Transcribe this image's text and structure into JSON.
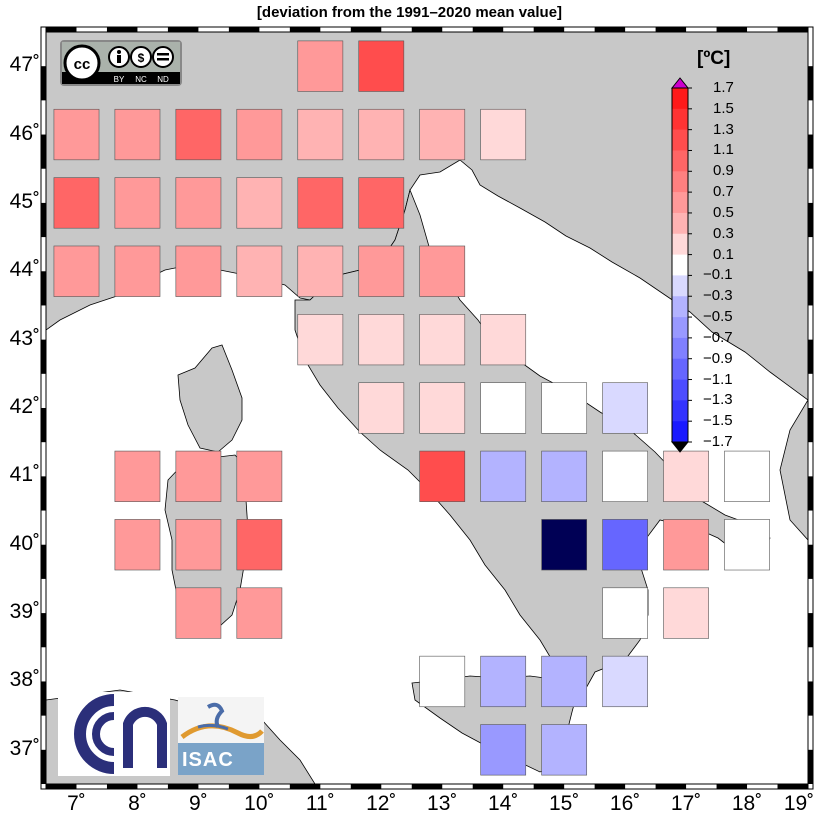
{
  "title": "[deviation from the 1991–2020 mean value]",
  "legend": {
    "unit": "[ºC]",
    "ticks": [
      "1.7",
      "1.5",
      "1.3",
      "1.1",
      "0.9",
      "0.7",
      "0.5",
      "0.3",
      "0.1",
      "−0.1",
      "−0.3",
      "−0.5",
      "−0.7",
      "−0.9",
      "−1.1",
      "−1.3",
      "−1.5",
      "−1.7"
    ],
    "colors_top_to_bottom": [
      "#ff1a1a",
      "#ff3333",
      "#ff4d4d",
      "#ff6666",
      "#ff8080",
      "#ff9999",
      "#ffb3b3",
      "#ffd9d9",
      "#ffffff",
      "#d9d9ff",
      "#b3b3ff",
      "#9999ff",
      "#8080ff",
      "#6666ff",
      "#4d4dff",
      "#3333ff",
      "#1a1aff"
    ],
    "overflow_high_color": "#cc00cc",
    "overflow_low_color": "#000000"
  },
  "axes": {
    "lon_labels": [
      "7˚",
      "8˚",
      "9˚",
      "10˚",
      "11˚",
      "12˚",
      "13˚",
      "14˚",
      "15˚",
      "16˚",
      "17˚",
      "18˚",
      "19˚"
    ],
    "lat_labels": [
      "47˚",
      "46˚",
      "45˚",
      "44˚",
      "43˚",
      "42˚",
      "41˚",
      "40˚",
      "39˚",
      "38˚",
      "37˚"
    ],
    "lon_range": [
      6.5,
      19
    ],
    "lat_range": [
      36.5,
      47.5
    ]
  },
  "grid_cells": [
    {
      "lon": 11,
      "lat": 47,
      "value": 0.5
    },
    {
      "lon": 12,
      "lat": 47,
      "value": 1.1
    },
    {
      "lon": 7,
      "lat": 46,
      "value": 0.5
    },
    {
      "lon": 8,
      "lat": 46,
      "value": 0.7
    },
    {
      "lon": 9,
      "lat": 46,
      "value": 0.9
    },
    {
      "lon": 10,
      "lat": 46,
      "value": 0.5
    },
    {
      "lon": 11,
      "lat": 46,
      "value": 0.3
    },
    {
      "lon": 12,
      "lat": 46,
      "value": 0.3
    },
    {
      "lon": 13,
      "lat": 46,
      "value": 0.3
    },
    {
      "lon": 14,
      "lat": 46,
      "value": 0.2
    },
    {
      "lon": 7,
      "lat": 45,
      "value": 0.9
    },
    {
      "lon": 8,
      "lat": 45,
      "value": 0.6
    },
    {
      "lon": 9,
      "lat": 45,
      "value": 0.5
    },
    {
      "lon": 10,
      "lat": 45,
      "value": 0.3
    },
    {
      "lon": 11,
      "lat": 45,
      "value": 0.9
    },
    {
      "lon": 12,
      "lat": 45,
      "value": 0.9
    },
    {
      "lon": 7,
      "lat": 44,
      "value": 0.7
    },
    {
      "lon": 8,
      "lat": 44,
      "value": 0.7
    },
    {
      "lon": 9,
      "lat": 44,
      "value": 0.5
    },
    {
      "lon": 10,
      "lat": 44,
      "value": 0.4
    },
    {
      "lon": 11,
      "lat": 44,
      "value": 0.4
    },
    {
      "lon": 12,
      "lat": 44,
      "value": 0.5
    },
    {
      "lon": 13,
      "lat": 44,
      "value": 0.5
    },
    {
      "lon": 11,
      "lat": 43,
      "value": 0.2
    },
    {
      "lon": 12,
      "lat": 43,
      "value": 0.2
    },
    {
      "lon": 13,
      "lat": 43,
      "value": 0.2
    },
    {
      "lon": 14,
      "lat": 43,
      "value": 0.2
    },
    {
      "lon": 12,
      "lat": 42,
      "value": 0.2
    },
    {
      "lon": 13,
      "lat": 42,
      "value": 0.2
    },
    {
      "lon": 14,
      "lat": 42,
      "value": 0.0
    },
    {
      "lon": 15,
      "lat": 42,
      "value": 0.0
    },
    {
      "lon": 16,
      "lat": 42,
      "value": -0.2
    },
    {
      "lon": 13,
      "lat": 41,
      "value": 1.1
    },
    {
      "lon": 14,
      "lat": 41,
      "value": -0.3
    },
    {
      "lon": 15,
      "lat": 41,
      "value": -0.3
    },
    {
      "lon": 16,
      "lat": 41,
      "value": 0.0
    },
    {
      "lon": 17,
      "lat": 41,
      "value": 0.2
    },
    {
      "lon": 18,
      "lat": 41,
      "value": 0.0
    },
    {
      "lon": 8,
      "lat": 41,
      "value": 0.7
    },
    {
      "lon": 9,
      "lat": 41,
      "value": 0.7
    },
    {
      "lon": 10,
      "lat": 41,
      "value": 0.7
    },
    {
      "lon": 8,
      "lat": 40,
      "value": 0.7
    },
    {
      "lon": 9,
      "lat": 40,
      "value": 0.7
    },
    {
      "lon": 10,
      "lat": 40,
      "value": 0.9
    },
    {
      "lon": 15,
      "lat": 40,
      "value": -2.0
    },
    {
      "lon": 16,
      "lat": 40,
      "value": -1.1
    },
    {
      "lon": 17,
      "lat": 40,
      "value": 0.5
    },
    {
      "lon": 18,
      "lat": 40,
      "value": 0.0
    },
    {
      "lon": 9,
      "lat": 39,
      "value": 0.7
    },
    {
      "lon": 10,
      "lat": 39,
      "value": 0.7
    },
    {
      "lon": 16,
      "lat": 39,
      "value": 0.0
    },
    {
      "lon": 17,
      "lat": 39,
      "value": 0.2
    },
    {
      "lon": 13,
      "lat": 38,
      "value": 0.0
    },
    {
      "lon": 14,
      "lat": 38,
      "value": -0.3
    },
    {
      "lon": 15,
      "lat": 38,
      "value": -0.3
    },
    {
      "lon": 16,
      "lat": 38,
      "value": -0.2
    },
    {
      "lon": 14,
      "lat": 37,
      "value": -0.5
    },
    {
      "lon": 15,
      "lat": 37,
      "value": -0.3
    }
  ],
  "logos": {
    "cc_badge": [
      "BY",
      "NC",
      "ND"
    ],
    "isac": "ISAC"
  }
}
